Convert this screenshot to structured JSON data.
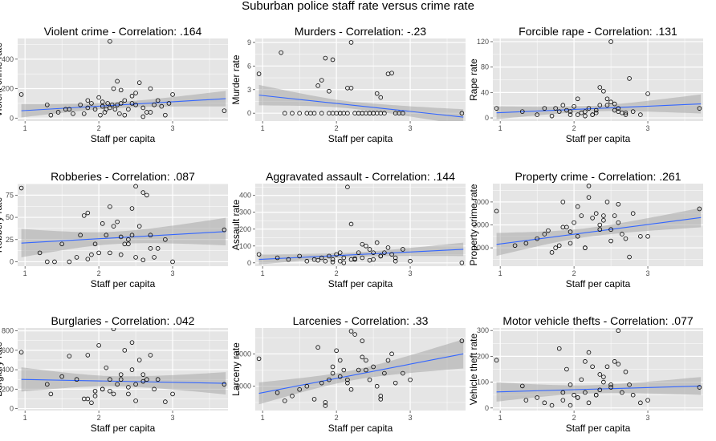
{
  "title": "Suburban police staff rate versus crime rate",
  "colors": {
    "panel_bg": "#e5e5e5",
    "grid": "#ffffff",
    "fit_line": "#3366ff",
    "band": "#999999",
    "points": "#000000"
  },
  "chart_data": [
    {
      "type": "scatter",
      "title": "Violent crime - Correlation: .164",
      "xlabel": "Staff per capita",
      "ylabel": "Violent crime rate",
      "xlim": [
        0.9,
        3.75
      ],
      "ylim": [
        -20,
        540
      ],
      "xticks": [
        1,
        2,
        3
      ],
      "yticks": [
        0,
        200,
        400
      ],
      "fit": {
        "x": [
          0.95,
          3.72
        ],
        "y": [
          50,
          132
        ]
      },
      "band": {
        "lo_ends": [
          5,
          80
        ],
        "hi_ends": [
          95,
          185
        ]
      },
      "points": {
        "x": [
          0.95,
          1.3,
          1.35,
          1.45,
          1.6,
          1.65,
          1.75,
          1.8,
          1.85,
          1.9,
          1.95,
          2.0,
          2.02,
          2.05,
          2.08,
          2.1,
          2.12,
          2.15,
          2.18,
          2.2,
          2.22,
          2.25,
          2.28,
          2.3,
          2.35,
          2.4,
          2.45,
          2.5,
          2.55,
          2.6,
          2.65,
          2.7,
          2.75,
          2.8,
          2.9,
          3.0,
          2.15,
          2.5,
          3.7,
          1.85,
          2.25,
          2.6,
          2.35,
          2.45,
          2.3,
          2.05,
          1.55,
          2.7,
          2.85,
          2.95
        ],
        "y": [
          160,
          90,
          20,
          40,
          60,
          30,
          90,
          30,
          120,
          100,
          60,
          140,
          20,
          80,
          40,
          60,
          100,
          520,
          90,
          200,
          60,
          250,
          30,
          100,
          20,
          60,
          150,
          90,
          240,
          70,
          40,
          200,
          90,
          120,
          20,
          160,
          70,
          170,
          50,
          70,
          90,
          10,
          120,
          100,
          190,
          110,
          60,
          40,
          80,
          100
        ]
      }
    },
    {
      "type": "scatter",
      "title": "Murders - Correlation: -.23",
      "xlabel": "Staff per capita",
      "ylabel": "Murder rate",
      "xlim": [
        0.9,
        3.75
      ],
      "ylim": [
        -1,
        9.5
      ],
      "xticks": [
        1,
        2,
        3
      ],
      "yticks": [
        0,
        3,
        6,
        9
      ],
      "fit": {
        "x": [
          0.95,
          3.72
        ],
        "y": [
          2.3,
          -0.5
        ]
      },
      "band": {
        "lo_ends": [
          1.0,
          -1.5
        ],
        "hi_ends": [
          3.6,
          0.5
        ]
      },
      "points": {
        "x": [
          0.95,
          1.25,
          1.3,
          1.4,
          1.5,
          1.6,
          1.7,
          1.75,
          1.8,
          1.85,
          1.9,
          1.95,
          2.0,
          2.05,
          2.1,
          2.15,
          2.2,
          2.25,
          2.3,
          2.35,
          2.4,
          2.45,
          2.5,
          2.55,
          2.6,
          2.7,
          2.8,
          2.9,
          3.7,
          1.8,
          1.9,
          2.2,
          2.3,
          2.55,
          2.75,
          2.15,
          1.65,
          2.05,
          2.45,
          2.65,
          2.85,
          1.95,
          2.35,
          2.5,
          2.6
        ],
        "y": [
          5.0,
          7.7,
          0,
          0,
          0,
          0,
          0,
          3.5,
          4.2,
          7.0,
          0,
          6.8,
          0,
          0,
          0,
          0,
          9.0,
          0,
          0,
          0,
          0,
          0,
          0,
          2.5,
          2.0,
          5.0,
          0,
          0,
          0,
          0,
          2.8,
          3.2,
          0,
          0,
          5.1,
          3.2,
          0,
          0,
          0,
          0,
          0,
          0,
          0,
          0,
          0
        ]
      }
    },
    {
      "type": "scatter",
      "title": "Forcible rape - Correlation: .131",
      "xlabel": "Staff per capita",
      "ylabel": "Rape rate",
      "xlim": [
        0.9,
        3.75
      ],
      "ylim": [
        -5,
        125
      ],
      "xticks": [
        1,
        2,
        3
      ],
      "yticks": [
        0,
        40,
        80,
        120
      ],
      "fit": {
        "x": [
          0.95,
          3.72
        ],
        "y": [
          8,
          22
        ]
      },
      "band": {
        "lo_ends": [
          -2,
          8
        ],
        "hi_ends": [
          18,
          38
        ]
      },
      "points": {
        "x": [
          0.95,
          1.3,
          1.5,
          1.6,
          1.7,
          1.8,
          1.85,
          1.9,
          1.95,
          2.0,
          2.05,
          2.1,
          2.15,
          2.2,
          2.25,
          2.3,
          2.35,
          2.4,
          2.45,
          2.5,
          2.55,
          2.6,
          2.65,
          2.7,
          2.75,
          2.8,
          2.9,
          3.0,
          3.7,
          2.5,
          2.45,
          2.6,
          2.05,
          2.3,
          2.35,
          1.75,
          2.15,
          2.55,
          2.7,
          1.95,
          2.25
        ],
        "y": [
          15,
          10,
          5,
          15,
          3,
          10,
          20,
          12,
          5,
          18,
          30,
          8,
          10,
          15,
          5,
          12,
          48,
          42,
          20,
          120,
          22,
          15,
          8,
          5,
          62,
          10,
          5,
          38,
          15,
          25,
          30,
          10,
          5,
          8,
          20,
          15,
          3,
          12,
          8,
          10,
          5
        ]
      }
    },
    {
      "type": "scatter",
      "title": "Robberies - Correlation: .087",
      "xlabel": "Staff per capita",
      "ylabel": "Robbery rate",
      "xlim": [
        0.9,
        3.75
      ],
      "ylim": [
        -5,
        88
      ],
      "xticks": [
        1,
        2,
        3
      ],
      "yticks": [
        0,
        25,
        50,
        75
      ],
      "fit": {
        "x": [
          0.95,
          3.72
        ],
        "y": [
          21,
          34
        ]
      },
      "band": {
        "lo_ends": [
          5,
          20
        ],
        "hi_ends": [
          37,
          51
        ]
      },
      "points": {
        "x": [
          0.95,
          1.2,
          1.3,
          1.4,
          1.5,
          1.6,
          1.7,
          1.75,
          1.8,
          1.85,
          1.9,
          1.95,
          2.0,
          2.05,
          2.1,
          2.15,
          2.2,
          2.25,
          2.3,
          2.35,
          2.4,
          2.45,
          2.5,
          2.55,
          2.6,
          2.65,
          2.7,
          2.75,
          2.8,
          2.9,
          3.0,
          3.7,
          2.5,
          2.3,
          2.6,
          2.15,
          1.85,
          2.7,
          2.4,
          2.45
        ],
        "y": [
          83,
          10,
          0,
          0,
          20,
          0,
          5,
          30,
          52,
          55,
          8,
          20,
          10,
          43,
          30,
          62,
          40,
          45,
          28,
          20,
          25,
          60,
          85,
          40,
          78,
          75,
          30,
          5,
          15,
          25,
          0,
          36,
          5,
          8,
          2,
          10,
          3,
          15,
          20,
          30
        ]
      }
    },
    {
      "type": "scatter",
      "title": "Aggravated assault - Correlation: .144",
      "xlabel": "Staff per capita",
      "ylabel": "Assault rate",
      "xlim": [
        0.9,
        3.75
      ],
      "ylim": [
        -20,
        470
      ],
      "xticks": [
        1,
        2,
        3
      ],
      "yticks": [
        0,
        100,
        200,
        300,
        400
      ],
      "fit": {
        "x": [
          0.95,
          3.72
        ],
        "y": [
          20,
          80
        ]
      },
      "band": {
        "lo_ends": [
          -10,
          40
        ],
        "hi_ends": [
          50,
          120
        ]
      },
      "points": {
        "x": [
          0.95,
          1.2,
          1.35,
          1.5,
          1.6,
          1.7,
          1.8,
          1.85,
          1.9,
          1.95,
          2.0,
          2.05,
          2.1,
          2.15,
          2.2,
          2.25,
          2.3,
          2.35,
          2.4,
          2.45,
          2.5,
          2.55,
          2.6,
          2.65,
          2.7,
          2.75,
          2.8,
          2.9,
          3.0,
          3.7,
          2.1,
          2.2,
          2.35,
          2.5,
          2.6,
          2.8,
          1.95,
          2.45,
          2.25,
          2.05,
          1.75
        ],
        "y": [
          50,
          30,
          20,
          40,
          10,
          20,
          30,
          10,
          40,
          20,
          50,
          60,
          30,
          450,
          230,
          20,
          60,
          110,
          100,
          80,
          60,
          120,
          40,
          60,
          90,
          50,
          30,
          80,
          10,
          0,
          0,
          20,
          30,
          20,
          40,
          10,
          5,
          15,
          25,
          10,
          15
        ]
      }
    },
    {
      "type": "scatter",
      "title": "Property crime - Correlation: .261",
      "xlabel": "Staff per capita",
      "ylabel": "Property crime rate",
      "xlim": [
        0.9,
        3.75
      ],
      "ylim": [
        200,
        3800
      ],
      "xticks": [
        1,
        2,
        3
      ],
      "yticks": [
        1000,
        2000,
        3000
      ],
      "fit": {
        "x": [
          0.95,
          3.72
        ],
        "y": [
          1150,
          2320
        ]
      },
      "band": {
        "lo_ends": [
          650,
          1900
        ],
        "hi_ends": [
          1650,
          2750
        ]
      },
      "points": {
        "x": [
          0.95,
          1.2,
          1.35,
          1.5,
          1.6,
          1.65,
          1.7,
          1.75,
          1.8,
          1.85,
          1.9,
          1.95,
          2.0,
          2.05,
          2.1,
          2.15,
          2.2,
          2.25,
          2.3,
          2.35,
          2.4,
          2.45,
          2.5,
          2.55,
          2.6,
          2.65,
          2.7,
          2.75,
          2.8,
          2.9,
          3.0,
          3.7,
          2.2,
          2.35,
          2.5,
          2.05,
          1.95,
          2.6,
          2.4,
          2.15,
          1.85
        ],
        "y": [
          2600,
          1100,
          1200,
          1400,
          1600,
          1750,
          800,
          1000,
          1100,
          3000,
          1900,
          1200,
          2100,
          2800,
          2400,
          1000,
          3700,
          2300,
          2500,
          1800,
          2400,
          3000,
          1800,
          2400,
          2100,
          1600,
          1400,
          600,
          2500,
          1500,
          1500,
          2700,
          3200,
          2000,
          1300,
          1500,
          1700,
          2900,
          2200,
          1000,
          1900
        ]
      }
    },
    {
      "type": "scatter",
      "title": "Burglaries - Correlation: .042",
      "xlabel": "Staff per capita",
      "ylabel": "Burglary rate",
      "xlim": [
        0.9,
        3.75
      ],
      "ylim": [
        -20,
        830
      ],
      "xticks": [
        1,
        2,
        3
      ],
      "yticks": [
        0,
        200,
        400,
        600,
        800
      ],
      "fit": {
        "x": [
          0.95,
          3.72
        ],
        "y": [
          300,
          260
        ]
      },
      "band": {
        "lo_ends": [
          175,
          145
        ],
        "hi_ends": [
          425,
          375
        ]
      },
      "points": {
        "x": [
          0.95,
          1.3,
          1.35,
          1.5,
          1.6,
          1.7,
          1.8,
          1.85,
          1.9,
          1.95,
          2.0,
          2.05,
          2.1,
          2.15,
          2.2,
          2.25,
          2.3,
          2.35,
          2.4,
          2.45,
          2.5,
          2.55,
          2.6,
          2.65,
          2.7,
          2.75,
          2.8,
          2.9,
          3.0,
          3.7,
          2.2,
          2.3,
          2.5,
          2.05,
          1.95,
          2.6,
          2.4,
          2.15,
          1.85,
          2.45
        ],
        "y": [
          580,
          250,
          150,
          330,
          540,
          300,
          100,
          550,
          60,
          180,
          650,
          200,
          420,
          300,
          820,
          250,
          350,
          600,
          150,
          680,
          250,
          500,
          350,
          300,
          550,
          200,
          300,
          70,
          150,
          250,
          150,
          300,
          80,
          200,
          130,
          280,
          220,
          180,
          100,
          400
        ]
      }
    },
    {
      "type": "scatter",
      "title": "Larcenies - Correlation: .33",
      "xlabel": "Staff per capita",
      "ylabel": "Larceny rate",
      "xlim": [
        0.9,
        3.75
      ],
      "ylim": [
        250,
        2800
      ],
      "xticks": [
        1,
        2,
        3
      ],
      "yticks": [
        1000,
        2000
      ],
      "fit": {
        "x": [
          0.95,
          3.72
        ],
        "y": [
          780,
          2000
        ]
      },
      "band": {
        "lo_ends": [
          450,
          1550
        ],
        "hi_ends": [
          1130,
          2450
        ]
      },
      "points": {
        "x": [
          0.95,
          1.2,
          1.3,
          1.4,
          1.5,
          1.6,
          1.7,
          1.75,
          1.8,
          1.85,
          1.9,
          1.95,
          2.0,
          2.05,
          2.1,
          2.15,
          2.2,
          2.25,
          2.3,
          2.35,
          2.4,
          2.45,
          2.5,
          2.55,
          2.6,
          2.65,
          2.7,
          2.75,
          2.8,
          2.9,
          3.0,
          3.7,
          2.2,
          2.35,
          2.05,
          1.95,
          2.6,
          2.4,
          2.15,
          1.85
        ],
        "y": [
          1850,
          800,
          550,
          700,
          900,
          1000,
          600,
          2200,
          1100,
          500,
          1200,
          1400,
          2100,
          1800,
          1500,
          1200,
          2700,
          2600,
          1500,
          2400,
          1800,
          1200,
          1600,
          1000,
          600,
          1400,
          1800,
          2000,
          1100,
          1400,
          1200,
          2400,
          900,
          1900,
          1300,
          1600,
          700,
          1500,
          1100,
          400
        ]
      }
    },
    {
      "type": "scatter",
      "title": "Motor vehicle thefts - Correlation: .077",
      "xlabel": "Staff per capita",
      "ylabel": "Vehicle theft rate",
      "xlim": [
        0.9,
        3.75
      ],
      "ylim": [
        -10,
        310
      ],
      "xticks": [
        1,
        2,
        3
      ],
      "yticks": [
        0,
        100,
        200,
        300
      ],
      "fit": {
        "x": [
          0.95,
          3.72
        ],
        "y": [
          62,
          85
        ]
      },
      "band": {
        "lo_ends": [
          25,
          50
        ],
        "hi_ends": [
          100,
          120
        ]
      },
      "points": {
        "x": [
          0.95,
          1.3,
          1.35,
          1.5,
          1.6,
          1.7,
          1.8,
          1.85,
          1.9,
          1.95,
          2.0,
          2.05,
          2.1,
          2.15,
          2.2,
          2.25,
          2.3,
          2.35,
          2.4,
          2.45,
          2.5,
          2.55,
          2.6,
          2.65,
          2.7,
          2.75,
          2.8,
          2.9,
          3.0,
          3.7,
          2.2,
          2.35,
          2.05,
          1.95,
          2.6,
          2.4,
          2.15,
          1.85,
          2.5,
          2.3
        ],
        "y": [
          185,
          85,
          30,
          40,
          20,
          10,
          230,
          60,
          150,
          90,
          50,
          40,
          110,
          180,
          215,
          160,
          50,
          130,
          100,
          160,
          80,
          180,
          300,
          60,
          140,
          90,
          50,
          20,
          30,
          80,
          20,
          70,
          40,
          10,
          170,
          120,
          60,
          30,
          90,
          50
        ]
      }
    }
  ]
}
